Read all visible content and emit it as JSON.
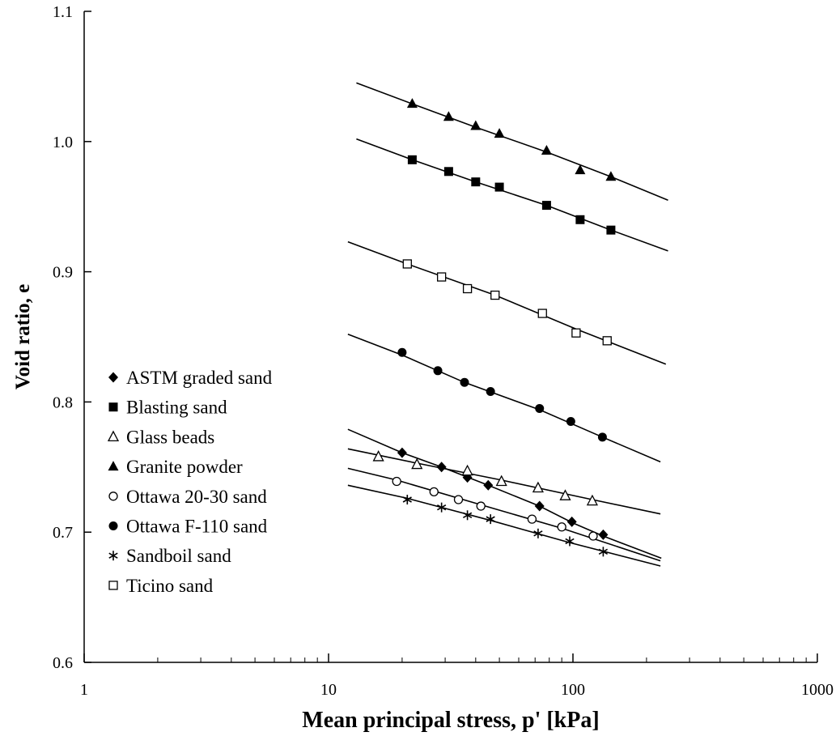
{
  "chart_data": {
    "type": "scatter",
    "xlabel": "Mean principal stress, p' [kPa]",
    "ylabel": "Void ratio, e",
    "xscale": "log",
    "xlim": [
      1,
      1000
    ],
    "ylim": [
      0.6,
      1.1
    ],
    "xticks": [
      1,
      10,
      100,
      1000
    ],
    "xtick_labels": [
      "1",
      "10",
      "100",
      "1000"
    ],
    "yticks": [
      0.6,
      0.7,
      0.8,
      0.9,
      1.0,
      1.1
    ],
    "ytick_labels": [
      "0.6",
      "0.7",
      "0.8",
      "0.9",
      "1.0",
      "1.1"
    ],
    "grid": false,
    "legend_position": "lower-left",
    "series": [
      {
        "name": "ASTM graded sand",
        "marker": "diamond-filled",
        "points": [
          [
            20,
            0.761
          ],
          [
            29,
            0.75
          ],
          [
            37,
            0.742
          ],
          [
            45,
            0.736
          ],
          [
            73,
            0.72
          ],
          [
            99,
            0.708
          ],
          [
            133,
            0.698
          ]
        ],
        "fit": [
          [
            12,
            0.779
          ],
          [
            20,
            0.761
          ],
          [
            29,
            0.75
          ],
          [
            45,
            0.736
          ],
          [
            73,
            0.72
          ],
          [
            100,
            0.707
          ],
          [
            133,
            0.697
          ],
          [
            230,
            0.68
          ]
        ]
      },
      {
        "name": "Blasting sand",
        "marker": "square-filled",
        "points": [
          [
            22,
            0.986
          ],
          [
            31,
            0.977
          ],
          [
            40,
            0.969
          ],
          [
            50,
            0.965
          ],
          [
            78,
            0.951
          ],
          [
            107,
            0.94
          ],
          [
            143,
            0.932
          ]
        ],
        "fit": [
          [
            13,
            1.002
          ],
          [
            22,
            0.986
          ],
          [
            40,
            0.969
          ],
          [
            78,
            0.951
          ],
          [
            143,
            0.932
          ],
          [
            245,
            0.916
          ]
        ]
      },
      {
        "name": "Glass beads",
        "marker": "triangle-open",
        "points": [
          [
            16,
            0.758
          ],
          [
            23,
            0.752
          ],
          [
            37,
            0.747
          ],
          [
            51,
            0.739
          ],
          [
            72,
            0.734
          ],
          [
            93,
            0.728
          ],
          [
            120,
            0.724
          ]
        ],
        "fit": [
          [
            12,
            0.764
          ],
          [
            23,
            0.753
          ],
          [
            51,
            0.74
          ],
          [
            120,
            0.725
          ],
          [
            228,
            0.714
          ]
        ]
      },
      {
        "name": "Granite powder",
        "marker": "triangle-filled",
        "points": [
          [
            22,
            1.029
          ],
          [
            31,
            1.019
          ],
          [
            40,
            1.012
          ],
          [
            50,
            1.006
          ],
          [
            78,
            0.993
          ],
          [
            107,
            0.978
          ],
          [
            143,
            0.973
          ]
        ],
        "fit": [
          [
            13,
            1.045
          ],
          [
            22,
            1.029
          ],
          [
            40,
            1.011
          ],
          [
            78,
            0.992
          ],
          [
            143,
            0.973
          ],
          [
            245,
            0.955
          ]
        ]
      },
      {
        "name": "Ottawa 20-30 sand",
        "marker": "circle-open",
        "points": [
          [
            19,
            0.739
          ],
          [
            27,
            0.731
          ],
          [
            34,
            0.725
          ],
          [
            42,
            0.72
          ],
          [
            68,
            0.71
          ],
          [
            90,
            0.704
          ],
          [
            121,
            0.697
          ]
        ],
        "fit": [
          [
            12,
            0.749
          ],
          [
            19,
            0.74
          ],
          [
            42,
            0.721
          ],
          [
            90,
            0.703
          ],
          [
            228,
            0.678
          ]
        ]
      },
      {
        "name": "Ottawa F-110 sand",
        "marker": "circle-filled",
        "points": [
          [
            20,
            0.838
          ],
          [
            28,
            0.824
          ],
          [
            36,
            0.815
          ],
          [
            46,
            0.808
          ],
          [
            73,
            0.795
          ],
          [
            98,
            0.785
          ],
          [
            132,
            0.773
          ]
        ],
        "fit": [
          [
            12,
            0.852
          ],
          [
            20,
            0.836
          ],
          [
            36,
            0.815
          ],
          [
            73,
            0.794
          ],
          [
            132,
            0.773
          ],
          [
            228,
            0.754
          ]
        ]
      },
      {
        "name": "Sandboil sand",
        "marker": "asterisk",
        "points": [
          [
            21,
            0.725
          ],
          [
            29,
            0.719
          ],
          [
            37,
            0.713
          ],
          [
            46,
            0.71
          ],
          [
            72,
            0.699
          ],
          [
            97,
            0.693
          ],
          [
            133,
            0.685
          ]
        ],
        "fit": [
          [
            12,
            0.736
          ],
          [
            21,
            0.726
          ],
          [
            46,
            0.709
          ],
          [
            97,
            0.692
          ],
          [
            228,
            0.674
          ]
        ]
      },
      {
        "name": "Ticino sand",
        "marker": "square-open",
        "points": [
          [
            21,
            0.906
          ],
          [
            29,
            0.896
          ],
          [
            37,
            0.887
          ],
          [
            48,
            0.882
          ],
          [
            75,
            0.868
          ],
          [
            103,
            0.853
          ],
          [
            138,
            0.847
          ]
        ],
        "fit": [
          [
            12,
            0.923
          ],
          [
            21,
            0.906
          ],
          [
            48,
            0.882
          ],
          [
            103,
            0.856
          ],
          [
            240,
            0.829
          ]
        ]
      }
    ]
  }
}
